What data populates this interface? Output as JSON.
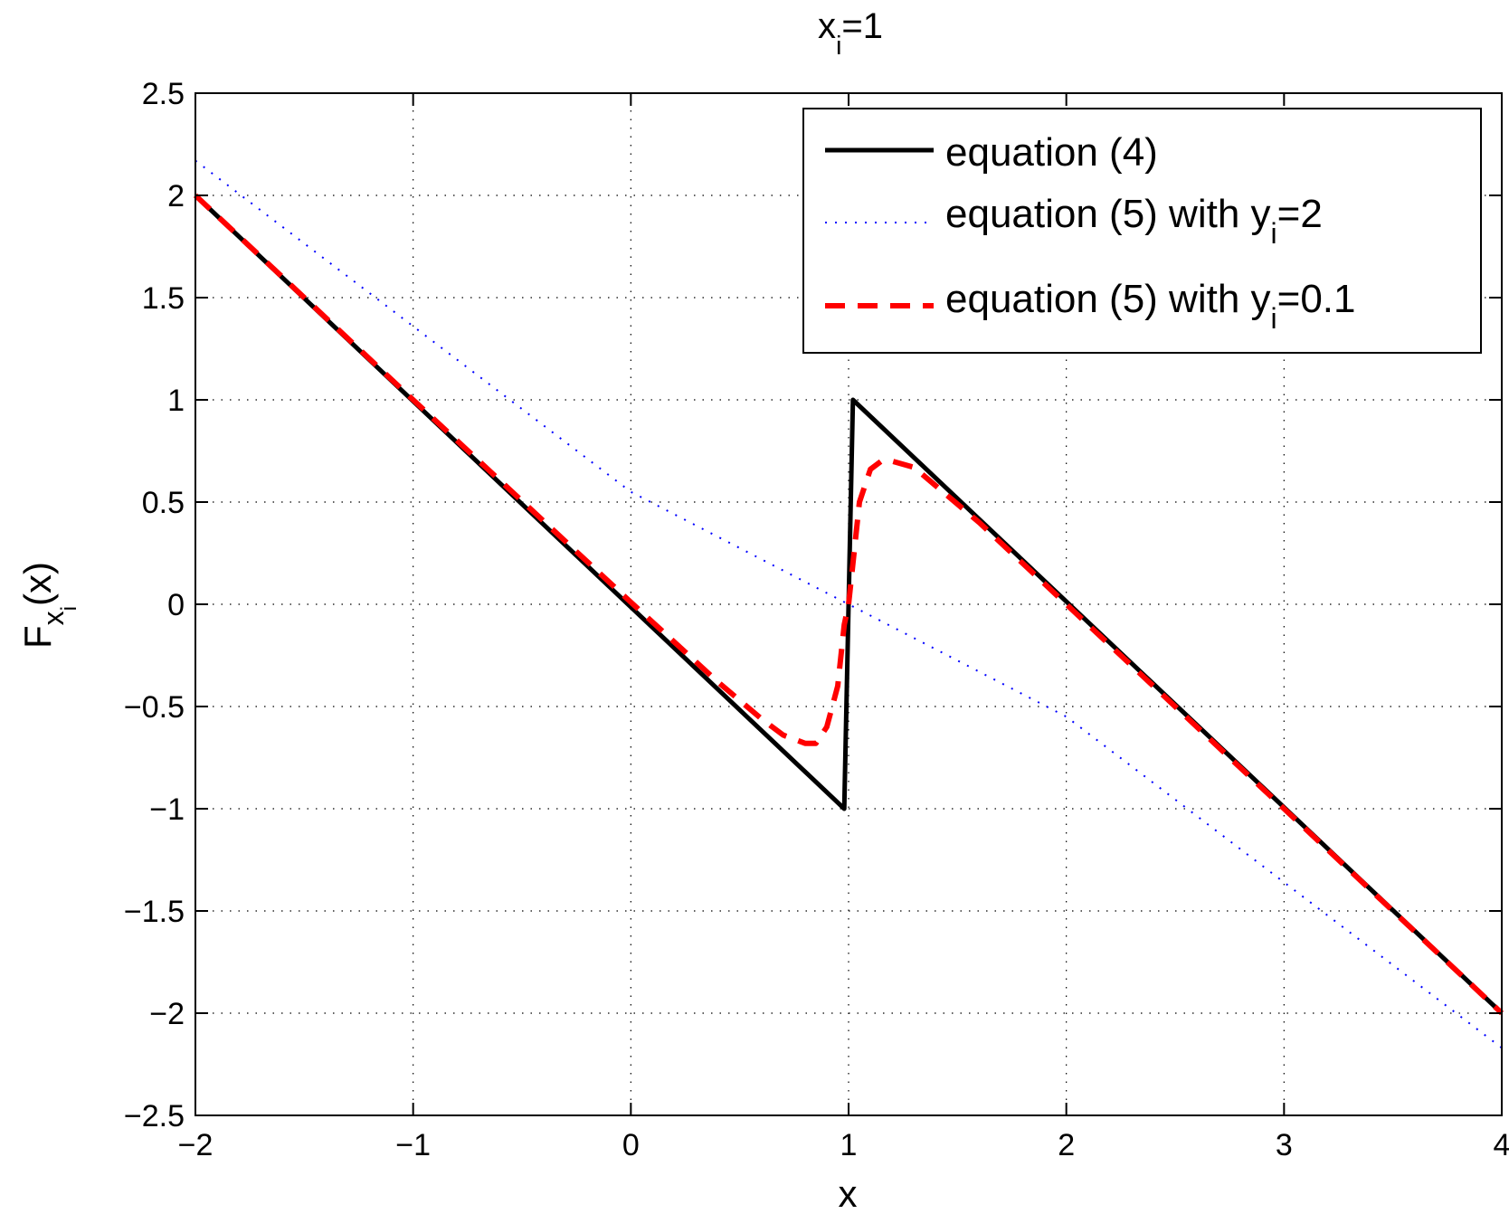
{
  "chart_data": {
    "type": "line",
    "title": {
      "base": "x",
      "sub": "i",
      "rest": "=1"
    },
    "xlabel": "x",
    "ylabel": {
      "base": "F",
      "sub": "x",
      "subsub": "i",
      "rest": "(x)"
    },
    "xlim": [
      -2,
      4
    ],
    "ylim": [
      -2.5,
      2.5
    ],
    "xticks": [
      -2,
      -1,
      0,
      1,
      2,
      3,
      4
    ],
    "xtick_labels": [
      "−2",
      "−1",
      "0",
      "1",
      "2",
      "3",
      "4"
    ],
    "yticks": [
      2.5,
      2,
      1.5,
      1,
      0.5,
      0,
      -0.5,
      -1,
      -1.5,
      -2,
      -2.5
    ],
    "ytick_labels": [
      "2.5",
      "2",
      "1.5",
      "1",
      "0.5",
      "0",
      "−0.5",
      "−1",
      "−1.5",
      "−2",
      "−2.5"
    ],
    "grid": true,
    "legend_position": "top-right",
    "series": [
      {
        "name": "equation (4)",
        "legend": {
          "text": "equation (4)",
          "sub": "",
          "rest": ""
        },
        "color": "#000000",
        "style": "solid",
        "x": [
          -2,
          0.98,
          1.02,
          4
        ],
        "y": [
          2,
          -1,
          1,
          -2
        ]
      },
      {
        "name": "equation (5) with y_i=2",
        "legend": {
          "text": "equation (5) with y",
          "sub": "i",
          "rest": "=2"
        },
        "color": "#0000ff",
        "style": "dotted",
        "x": [
          -2,
          0,
          1,
          2,
          4
        ],
        "y": [
          2.17,
          0.55,
          0.0,
          -0.55,
          -2.17
        ]
      },
      {
        "name": "equation (5) with y_i=0.1",
        "legend": {
          "text": "equation (5) with y",
          "sub": "i",
          "rest": "=0.1"
        },
        "color": "#ff0000",
        "style": "dashed",
        "x": [
          -2,
          -1,
          0,
          0.4,
          0.6,
          0.7,
          0.8,
          0.85,
          0.9,
          0.95,
          0.98,
          1.0,
          1.02,
          1.05,
          1.1,
          1.15,
          1.2,
          1.3,
          1.4,
          1.6,
          2,
          3,
          4
        ],
        "y": [
          2,
          1,
          0.01,
          -0.38,
          -0.56,
          -0.64,
          -0.68,
          -0.68,
          -0.6,
          -0.4,
          -0.1,
          0.0,
          0.2,
          0.5,
          0.66,
          0.7,
          0.7,
          0.67,
          0.58,
          0.4,
          0.0,
          -1.0,
          -2.0
        ]
      }
    ]
  }
}
